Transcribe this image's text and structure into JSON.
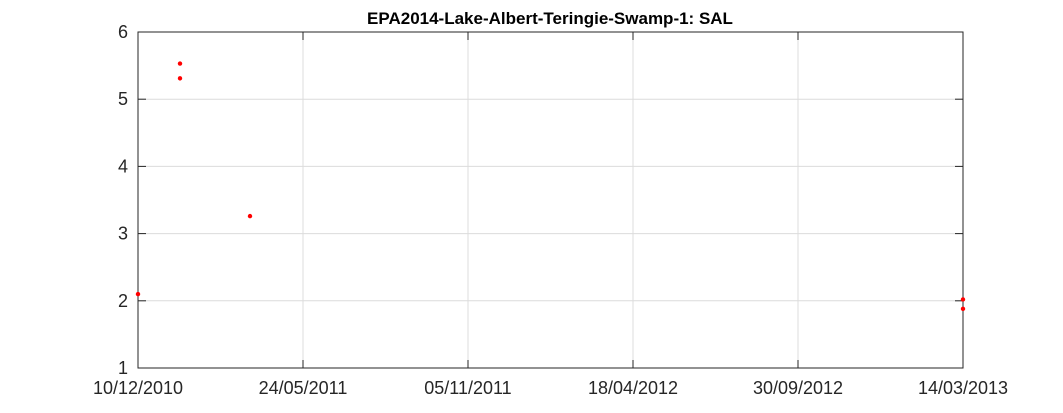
{
  "chart_data": {
    "type": "scatter",
    "title": "EPA2014-Lake-Albert-Teringie-Swamp-1: SAL",
    "xlabel": "",
    "ylabel": "",
    "x_type": "date",
    "xlim": [
      "2010-12-10",
      "2013-03-14"
    ],
    "ylim": [
      1,
      6
    ],
    "x_ticks": [
      "2010-12-10",
      "2011-05-24",
      "2011-11-05",
      "2012-04-18",
      "2012-09-30",
      "2013-03-14"
    ],
    "x_tick_labels": [
      "10/12/2010",
      "24/05/2011",
      "05/11/2011",
      "18/04/2012",
      "30/09/2012",
      "14/03/2013"
    ],
    "y_ticks": [
      1,
      2,
      3,
      4,
      5,
      6
    ],
    "y_tick_labels": [
      "1",
      "2",
      "3",
      "4",
      "5",
      "6"
    ],
    "grid": true,
    "marker_color": "#ff0000",
    "series": [
      {
        "points": [
          {
            "x": "2010-12-10",
            "y": 2.1
          },
          {
            "x": "2011-01-21",
            "y": 5.53
          },
          {
            "x": "2011-01-21",
            "y": 5.31
          },
          {
            "x": "2011-04-01",
            "y": 3.26
          },
          {
            "x": "2013-03-14",
            "y": 2.02
          },
          {
            "x": "2013-03-14",
            "y": 1.88
          }
        ]
      }
    ]
  }
}
